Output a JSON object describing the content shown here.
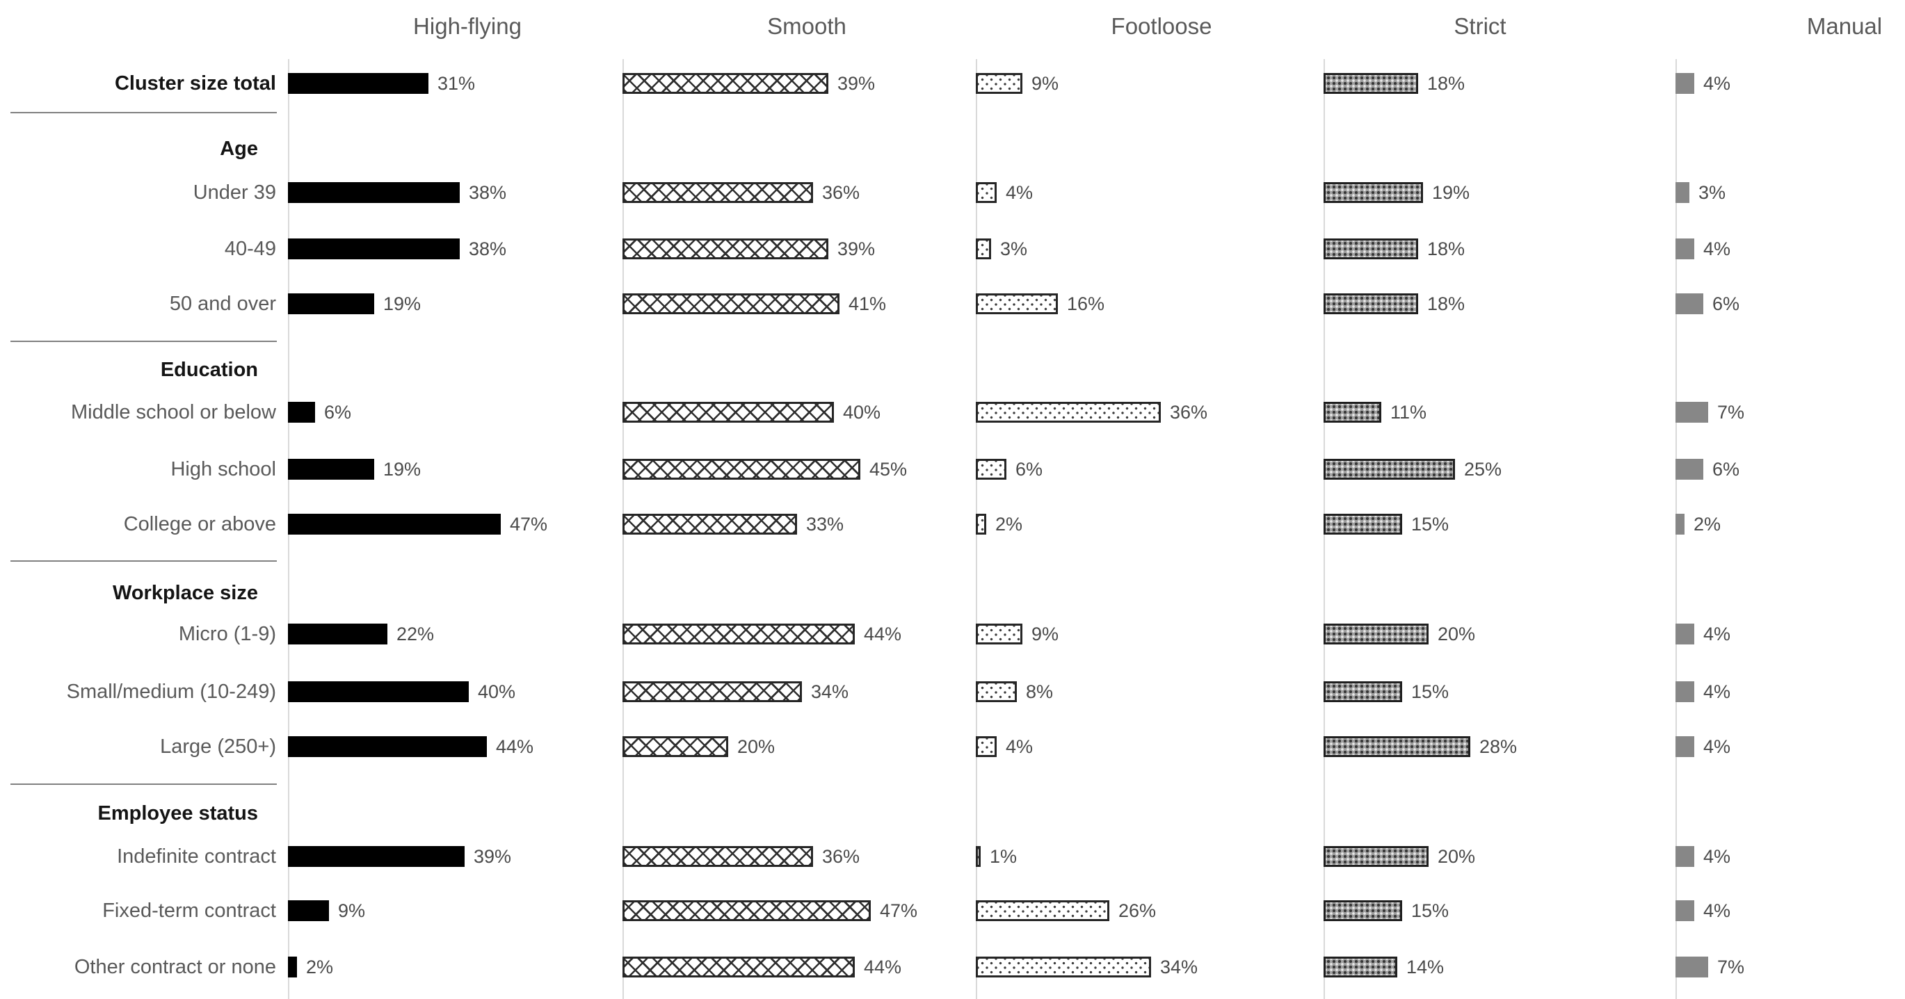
{
  "chart_data": {
    "type": "bar",
    "orientation": "horizontal",
    "value_unit": "%",
    "grid": false,
    "panels": [
      "High-flying",
      "Smooth",
      "Footloose",
      "Strict",
      "Manual"
    ],
    "panel_styles": [
      "solid-black",
      "crosshatch",
      "dots-sparse",
      "dots-dense-gray",
      "solid-gray"
    ],
    "sections": [
      {
        "header": null,
        "rows": [
          {
            "label": "Cluster size total",
            "bold": true,
            "values": [
              31,
              39,
              9,
              18,
              4
            ],
            "labels": [
              "31%",
              "39%",
              "9%",
              "18%",
              "4%"
            ]
          }
        ]
      },
      {
        "header": "Age",
        "rows": [
          {
            "label": "Under 39",
            "bold": false,
            "values": [
              38,
              36,
              4,
              19,
              3
            ],
            "labels": [
              "38%",
              "36%",
              "4%",
              "19%",
              "3%"
            ]
          },
          {
            "label": "40-49",
            "bold": false,
            "values": [
              38,
              39,
              3,
              18,
              4
            ],
            "labels": [
              "38%",
              "39%",
              "3%",
              "18%",
              "4%"
            ]
          },
          {
            "label": "50 and over",
            "bold": false,
            "values": [
              19,
              41,
              16,
              18,
              6
            ],
            "labels": [
              "19%",
              "41%",
              "16%",
              "18%",
              "6%"
            ]
          }
        ]
      },
      {
        "header": "Education",
        "rows": [
          {
            "label": "Middle school or below",
            "bold": false,
            "values": [
              6,
              40,
              36,
              11,
              7
            ],
            "labels": [
              "6%",
              "40%",
              "36%",
              "11%",
              "7%"
            ]
          },
          {
            "label": "High school",
            "bold": false,
            "values": [
              19,
              45,
              6,
              25,
              6
            ],
            "labels": [
              "19%",
              "45%",
              "6%",
              "25%",
              "6%"
            ]
          },
          {
            "label": "College or above",
            "bold": false,
            "values": [
              47,
              33,
              2,
              15,
              2
            ],
            "labels": [
              "47%",
              "33%",
              "2%",
              "15%",
              "2%"
            ]
          }
        ]
      },
      {
        "header": "Workplace size",
        "rows": [
          {
            "label": "Micro (1-9)",
            "bold": false,
            "values": [
              22,
              44,
              9,
              20,
              4
            ],
            "labels": [
              "22%",
              "44%",
              "9%",
              "20%",
              "4%"
            ]
          },
          {
            "label": "Small/medium (10-249)",
            "bold": false,
            "values": [
              40,
              34,
              8,
              15,
              4
            ],
            "labels": [
              "40%",
              "34%",
              "8%",
              "15%",
              "4%"
            ]
          },
          {
            "label": "Large (250+)",
            "bold": false,
            "values": [
              44,
              20,
              4,
              28,
              4
            ],
            "labels": [
              "44%",
              "20%",
              "4%",
              "28%",
              "4%"
            ]
          }
        ]
      },
      {
        "header": "Employee status",
        "rows": [
          {
            "label": "Indefinite contract",
            "bold": false,
            "values": [
              39,
              36,
              1,
              20,
              4
            ],
            "labels": [
              "39%",
              "36%",
              "1%",
              "20%",
              "4%"
            ]
          },
          {
            "label": "Fixed-term contract",
            "bold": false,
            "values": [
              9,
              47,
              26,
              15,
              4
            ],
            "labels": [
              "9%",
              "47%",
              "26%",
              "15%",
              "4%"
            ]
          },
          {
            "label": "Other contract or none",
            "bold": false,
            "values": [
              2,
              44,
              34,
              14,
              7
            ],
            "labels": [
              "2%",
              "44%",
              "34%",
              "14%",
              "7%"
            ]
          }
        ]
      }
    ],
    "colors": {
      "bar_black": "#000000",
      "bar_gray": "#878787",
      "axis_line": "#d9d9d9",
      "divider": "#808080",
      "header_text": "#595959",
      "label_text": "#595959",
      "bold_label_text": "#141414",
      "value_text": "#4a4a4a"
    }
  }
}
